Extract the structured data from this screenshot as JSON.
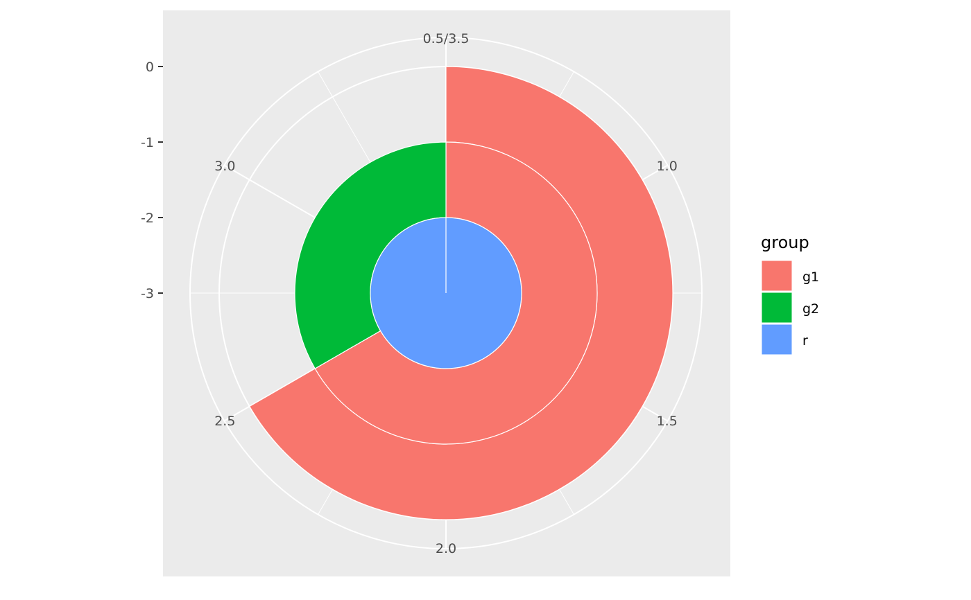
{
  "chart_data": {
    "type": "pie",
    "subtype": "polar stacked rings (coord_polar)",
    "theta_range": [
      0.5,
      3.5
    ],
    "r_range": [
      -3,
      0
    ],
    "theta_ticks": [
      "0.5/3.5",
      "1.0",
      "1.5",
      "2.0",
      "2.5",
      "3.0"
    ],
    "theta_tick_values": [
      0.5,
      1.0,
      1.5,
      2.0,
      2.5,
      3.0
    ],
    "theta_minor": [
      0.75,
      1.25,
      1.75,
      2.25,
      2.75,
      3.25
    ],
    "r_ticks": [
      "0",
      "-1",
      "-2",
      "-3"
    ],
    "r_tick_values": [
      0,
      -1,
      -2,
      -3
    ],
    "segments": [
      {
        "group": "g1",
        "xmin": 0.5,
        "xmax": 2.5,
        "ymin": -1,
        "ymax": 0
      },
      {
        "group": "g1",
        "xmin": 0.5,
        "xmax": 2.5,
        "ymin": -2,
        "ymax": -1
      },
      {
        "group": "g2",
        "xmin": 2.5,
        "xmax": 3.5,
        "ymin": -2,
        "ymax": -1
      },
      {
        "group": "r",
        "xmin": 0.5,
        "xmax": 3.5,
        "ymin": -3,
        "ymax": -2
      }
    ],
    "legend": {
      "title": "group",
      "placement": "right",
      "entries": [
        {
          "label": "g1",
          "color": "#F8766D"
        },
        {
          "label": "g2",
          "color": "#00BA38"
        },
        {
          "label": "r",
          "color": "#619CFF"
        }
      ]
    },
    "panel_color": "#EBEBEB",
    "grid": true
  }
}
